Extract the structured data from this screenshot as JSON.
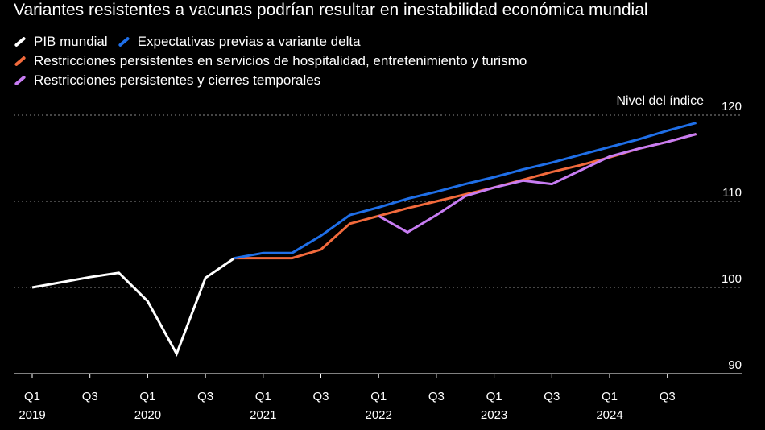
{
  "chart_data": {
    "type": "line",
    "title": "Variantes resistentes a vacunas podrían resultar en inestabilidad económica mundial",
    "ylabel": "Nivel del índice",
    "ylim": [
      88,
      121
    ],
    "yticks": [
      90,
      100,
      110,
      120
    ],
    "xticks": [
      {
        "quarter": "Q1",
        "year": "2019",
        "index": 0
      },
      {
        "quarter": "Q3",
        "year": "",
        "index": 2
      },
      {
        "quarter": "Q1",
        "year": "2020",
        "index": 4
      },
      {
        "quarter": "Q3",
        "year": "",
        "index": 6
      },
      {
        "quarter": "Q1",
        "year": "2021",
        "index": 8
      },
      {
        "quarter": "Q3",
        "year": "",
        "index": 10
      },
      {
        "quarter": "Q1",
        "year": "2022",
        "index": 12
      },
      {
        "quarter": "Q3",
        "year": "",
        "index": 14
      },
      {
        "quarter": "Q1",
        "year": "2023",
        "index": 16
      },
      {
        "quarter": "Q3",
        "year": "",
        "index": 18
      },
      {
        "quarter": "Q1",
        "year": "2024",
        "index": 20
      },
      {
        "quarter": "Q3",
        "year": "",
        "index": 22
      }
    ],
    "series": [
      {
        "name": "PIB mundial",
        "color": "#ffffff",
        "points": [
          [
            0,
            100.0
          ],
          [
            1,
            100.6
          ],
          [
            2,
            101.2
          ],
          [
            3,
            101.7
          ],
          [
            4,
            98.4
          ],
          [
            5,
            92.3
          ],
          [
            6,
            101.1
          ],
          [
            7,
            103.4
          ]
        ]
      },
      {
        "name": "Expectativas previas a variante delta",
        "color": "#1f6fe8",
        "points": [
          [
            7,
            103.4
          ],
          [
            8,
            104.0
          ],
          [
            9,
            104.0
          ],
          [
            10,
            106.0
          ],
          [
            11,
            108.4
          ],
          [
            12,
            109.3
          ],
          [
            13,
            110.3
          ],
          [
            14,
            111.1
          ],
          [
            15,
            112.0
          ],
          [
            16,
            112.8
          ],
          [
            17,
            113.7
          ],
          [
            18,
            114.5
          ],
          [
            19,
            115.4
          ],
          [
            20,
            116.3
          ],
          [
            21,
            117.2
          ],
          [
            22,
            118.2
          ],
          [
            23,
            119.1
          ]
        ]
      },
      {
        "name": "Restricciones persistentes en servicios de hospitalidad, entretenimiento y turismo",
        "color": "#f26a3c",
        "points": [
          [
            7,
            103.4
          ],
          [
            8,
            103.4
          ],
          [
            9,
            103.4
          ],
          [
            10,
            104.4
          ],
          [
            11,
            107.4
          ],
          [
            12,
            108.3
          ],
          [
            13,
            109.2
          ],
          [
            14,
            110.0
          ],
          [
            15,
            110.8
          ],
          [
            16,
            111.6
          ],
          [
            17,
            112.5
          ],
          [
            18,
            113.4
          ],
          [
            19,
            114.2
          ],
          [
            20,
            115.1
          ],
          [
            21,
            116.1
          ],
          [
            22,
            116.9
          ],
          [
            23,
            117.8
          ]
        ]
      },
      {
        "name": "Restricciones persistentes y cierres temporales",
        "color": "#c77cf2",
        "points": [
          [
            12,
            108.3
          ],
          [
            13,
            106.4
          ],
          [
            14,
            108.4
          ],
          [
            15,
            110.6
          ],
          [
            16,
            111.6
          ],
          [
            17,
            112.4
          ],
          [
            18,
            112.0
          ],
          [
            19,
            113.6
          ],
          [
            20,
            115.2
          ],
          [
            21,
            116.1
          ],
          [
            22,
            116.9
          ],
          [
            23,
            117.8
          ]
        ]
      }
    ],
    "legend": {
      "rows": [
        [
          0,
          1
        ],
        [
          2
        ],
        [
          3
        ]
      ]
    }
  }
}
